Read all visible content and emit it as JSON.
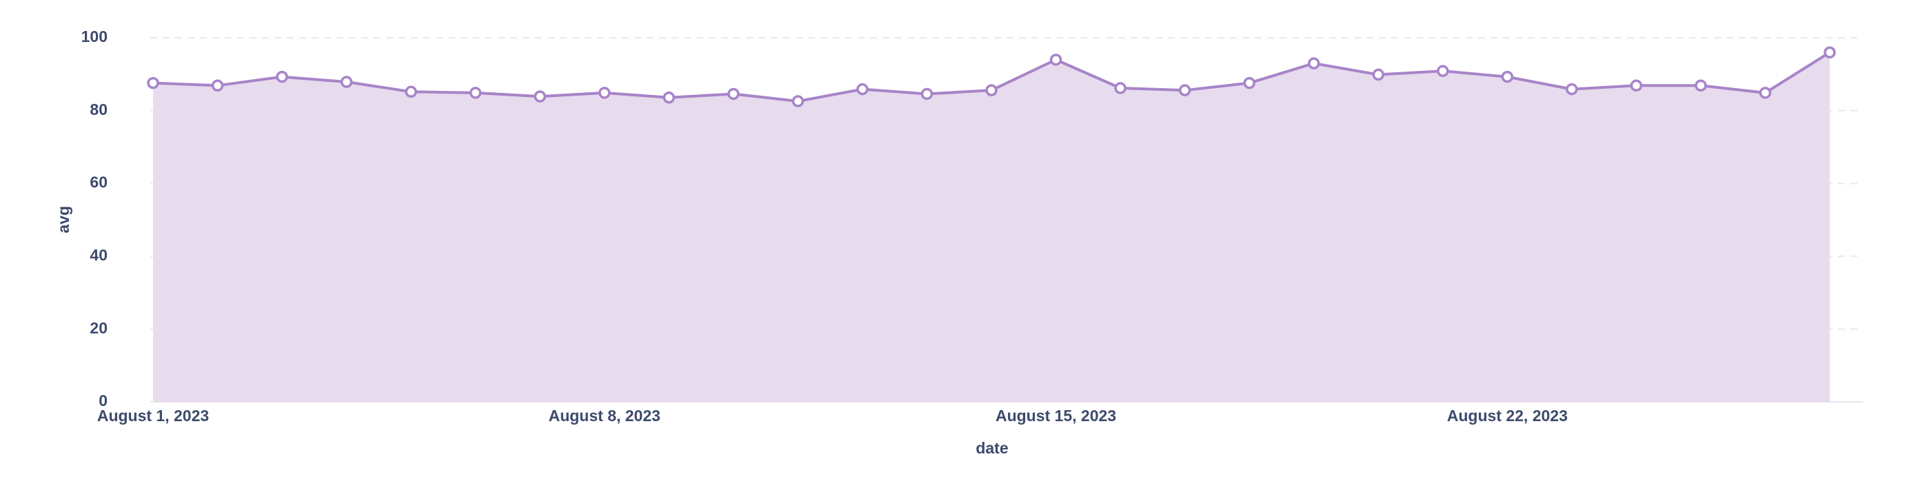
{
  "chart_data": {
    "type": "area",
    "x_label": "date",
    "y_label": "avg",
    "x": [
      "2023-08-01",
      "2023-08-02",
      "2023-08-03",
      "2023-08-04",
      "2023-08-05",
      "2023-08-06",
      "2023-08-07",
      "2023-08-08",
      "2023-08-09",
      "2023-08-10",
      "2023-08-11",
      "2023-08-12",
      "2023-08-13",
      "2023-08-14",
      "2023-08-15",
      "2023-08-16",
      "2023-08-17",
      "2023-08-18",
      "2023-08-19",
      "2023-08-20",
      "2023-08-21",
      "2023-08-22",
      "2023-08-23",
      "2023-08-24",
      "2023-08-25",
      "2023-08-26",
      "2023-08-27"
    ],
    "values": [
      87.6,
      86.9,
      89.3,
      87.9,
      85.2,
      84.9,
      83.9,
      84.9,
      83.6,
      84.6,
      82.6,
      85.9,
      84.6,
      85.6,
      94.0,
      86.2,
      85.6,
      87.6,
      93.0,
      89.9,
      90.9,
      89.3,
      85.9,
      86.9,
      86.9,
      84.9,
      96.0
    ],
    "color": "#a784c8",
    "fill": "#e7dbee",
    "xlim": [
      "2023-08-01",
      "2023-08-27"
    ],
    "xticks": [
      {
        "value": "2023-08-01",
        "label": "August 1, 2023"
      },
      {
        "value": "2023-08-08",
        "label": "August 8, 2023"
      },
      {
        "value": "2023-08-15",
        "label": "August 15, 2023"
      },
      {
        "value": "2023-08-22",
        "label": "August 22, 2023"
      }
    ],
    "ylim": [
      0,
      100
    ],
    "yticks": [
      0,
      20,
      40,
      60,
      80,
      100
    ],
    "grid": true
  }
}
